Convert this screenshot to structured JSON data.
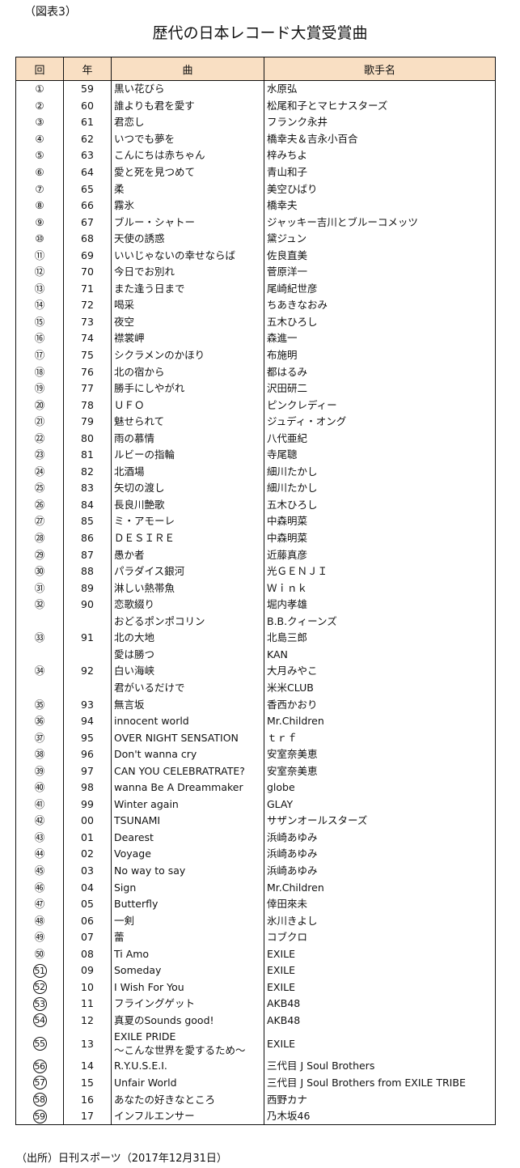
{
  "figure_label": "（図表3）",
  "title": "歴代の日本レコード大賞受賞曲",
  "headers": {
    "no": "回",
    "year": "年",
    "song": "曲",
    "artist": "歌手名"
  },
  "header_bg": "#f9dfc3",
  "rows": [
    {
      "no": 1,
      "year": "59",
      "lines": [
        [
          "黒い花びら",
          "水原弘"
        ]
      ]
    },
    {
      "no": 2,
      "year": "60",
      "lines": [
        [
          "誰よりも君を愛す",
          "松尾和子とマヒナスターズ"
        ]
      ]
    },
    {
      "no": 3,
      "year": "61",
      "lines": [
        [
          "君恋し",
          "フランク永井"
        ]
      ]
    },
    {
      "no": 4,
      "year": "62",
      "lines": [
        [
          "いつでも夢を",
          "橋幸夫＆吉永小百合"
        ]
      ]
    },
    {
      "no": 5,
      "year": "63",
      "lines": [
        [
          "こんにちは赤ちゃん",
          "梓みちよ"
        ]
      ]
    },
    {
      "no": 6,
      "year": "64",
      "lines": [
        [
          "愛と死を見つめて",
          "青山和子"
        ]
      ]
    },
    {
      "no": 7,
      "year": "65",
      "lines": [
        [
          "柔",
          "美空ひばり"
        ]
      ]
    },
    {
      "no": 8,
      "year": "66",
      "lines": [
        [
          "霧氷",
          "橋幸夫"
        ]
      ]
    },
    {
      "no": 9,
      "year": "67",
      "lines": [
        [
          "ブルー・シャトー",
          "ジャッキー吉川とブルーコメッツ"
        ]
      ]
    },
    {
      "no": 10,
      "year": "68",
      "lines": [
        [
          "天使の誘惑",
          "黛ジュン"
        ]
      ]
    },
    {
      "no": 11,
      "year": "69",
      "lines": [
        [
          "いいじゃないの幸せならば",
          "佐良直美"
        ]
      ]
    },
    {
      "no": 12,
      "year": "70",
      "lines": [
        [
          "今日でお別れ",
          "菅原洋一"
        ]
      ]
    },
    {
      "no": 13,
      "year": "71",
      "lines": [
        [
          "また逢う日まで",
          "尾崎紀世彦"
        ]
      ]
    },
    {
      "no": 14,
      "year": "72",
      "lines": [
        [
          "喝采",
          "ちあきなおみ"
        ]
      ]
    },
    {
      "no": 15,
      "year": "73",
      "lines": [
        [
          "夜空",
          "五木ひろし"
        ]
      ]
    },
    {
      "no": 16,
      "year": "74",
      "lines": [
        [
          "襟裳岬",
          "森進一"
        ]
      ]
    },
    {
      "no": 17,
      "year": "75",
      "lines": [
        [
          "シクラメンのかほり",
          "布施明"
        ]
      ]
    },
    {
      "no": 18,
      "year": "76",
      "lines": [
        [
          "北の宿から",
          "都はるみ"
        ]
      ]
    },
    {
      "no": 19,
      "year": "77",
      "lines": [
        [
          "勝手にしやがれ",
          "沢田研二"
        ]
      ]
    },
    {
      "no": 20,
      "year": "78",
      "lines": [
        [
          "ＵＦＯ",
          "ピンクレディー"
        ]
      ]
    },
    {
      "no": 21,
      "year": "79",
      "lines": [
        [
          "魅せられて",
          "ジュディ・オング"
        ]
      ]
    },
    {
      "no": 22,
      "year": "80",
      "lines": [
        [
          "雨の慕情",
          "八代亜紀"
        ]
      ]
    },
    {
      "no": 23,
      "year": "81",
      "lines": [
        [
          "ルビーの指輪",
          "寺尾聰"
        ]
      ]
    },
    {
      "no": 24,
      "year": "82",
      "lines": [
        [
          "北酒場",
          "細川たかし"
        ]
      ]
    },
    {
      "no": 25,
      "year": "83",
      "lines": [
        [
          "矢切の渡し",
          "細川たかし"
        ]
      ]
    },
    {
      "no": 26,
      "year": "84",
      "lines": [
        [
          "長良川艶歌",
          "五木ひろし"
        ]
      ]
    },
    {
      "no": 27,
      "year": "85",
      "lines": [
        [
          "ミ・アモーレ",
          "中森明菜"
        ]
      ]
    },
    {
      "no": 28,
      "year": "86",
      "lines": [
        [
          "ＤＥＳＩＲＥ",
          "中森明菜"
        ]
      ]
    },
    {
      "no": 29,
      "year": "87",
      "lines": [
        [
          "愚か者",
          "近藤真彦"
        ]
      ]
    },
    {
      "no": 30,
      "year": "88",
      "lines": [
        [
          "パラダイス銀河",
          "光ＧＥＮＪＩ"
        ]
      ]
    },
    {
      "no": 31,
      "year": "89",
      "lines": [
        [
          "淋しい熱帯魚",
          "Ｗｉｎｋ"
        ]
      ]
    },
    {
      "no": 32,
      "year": "90",
      "lines": [
        [
          "恋歌綴り",
          "堀内孝雄"
        ],
        [
          "おどるポンポコリン",
          "B.B.クィーンズ"
        ]
      ]
    },
    {
      "no": 33,
      "year": "91",
      "lines": [
        [
          "北の大地",
          "北島三郎"
        ],
        [
          "愛は勝つ",
          "KAN"
        ]
      ]
    },
    {
      "no": 34,
      "year": "92",
      "lines": [
        [
          "白い海峡",
          "大月みやこ"
        ],
        [
          "君がいるだけで",
          "米米CLUB"
        ]
      ]
    },
    {
      "no": 35,
      "year": "93",
      "lines": [
        [
          "無言坂",
          "香西かおり"
        ]
      ]
    },
    {
      "no": 36,
      "year": "94",
      "lines": [
        [
          "innocent world",
          "Mr.Children"
        ]
      ]
    },
    {
      "no": 37,
      "year": "95",
      "lines": [
        [
          "OVER NIGHT SENSATION",
          "ｔｒｆ"
        ]
      ]
    },
    {
      "no": 38,
      "year": "96",
      "lines": [
        [
          "Don't wanna cry",
          "安室奈美恵"
        ]
      ]
    },
    {
      "no": 39,
      "year": "97",
      "lines": [
        [
          "CAN YOU CELEBRATRATE?",
          "安室奈美恵"
        ]
      ]
    },
    {
      "no": 40,
      "year": "98",
      "lines": [
        [
          "wanna Be A Dreammaker",
          "globe"
        ]
      ]
    },
    {
      "no": 41,
      "year": "99",
      "lines": [
        [
          "Winter again",
          "GLAY"
        ]
      ]
    },
    {
      "no": 42,
      "year": "00",
      "lines": [
        [
          "TSUNAMI",
          "サザンオールスターズ"
        ]
      ]
    },
    {
      "no": 43,
      "year": "01",
      "lines": [
        [
          "Dearest",
          "浜崎あゆみ"
        ]
      ]
    },
    {
      "no": 44,
      "year": "02",
      "lines": [
        [
          "Voyage",
          "浜崎あゆみ"
        ]
      ]
    },
    {
      "no": 45,
      "year": "03",
      "lines": [
        [
          "No way to say",
          "浜崎あゆみ"
        ]
      ]
    },
    {
      "no": 46,
      "year": "04",
      "lines": [
        [
          "Sign",
          "Mr.Children"
        ]
      ]
    },
    {
      "no": 47,
      "year": "05",
      "lines": [
        [
          "Butterfly",
          "倖田來未"
        ]
      ]
    },
    {
      "no": 48,
      "year": "06",
      "lines": [
        [
          "一剣",
          "氷川きよし"
        ]
      ]
    },
    {
      "no": 49,
      "year": "07",
      "lines": [
        [
          "蕾",
          "コブクロ"
        ]
      ]
    },
    {
      "no": 50,
      "year": "08",
      "lines": [
        [
          "Ti Amo",
          "EXILE"
        ]
      ]
    },
    {
      "no": 51,
      "year": "09",
      "lines": [
        [
          "Someday",
          "EXILE"
        ]
      ]
    },
    {
      "no": 52,
      "year": "10",
      "lines": [
        [
          "I Wish For You",
          "EXILE"
        ]
      ]
    },
    {
      "no": 53,
      "year": "11",
      "lines": [
        [
          "フライングゲット",
          "AKB48"
        ]
      ]
    },
    {
      "no": 54,
      "year": "12",
      "lines": [
        [
          "真夏のSounds good!",
          "AKB48"
        ]
      ]
    },
    {
      "no": 55,
      "year": "13",
      "tall": true,
      "lines": [
        [
          "EXILE PRIDE\n～こんな世界を愛するため～",
          "EXILE"
        ]
      ]
    },
    {
      "no": 56,
      "year": "14",
      "lines": [
        [
          "R.Y.U.S.E.I.",
          "三代目 J Soul Brothers"
        ]
      ]
    },
    {
      "no": 57,
      "year": "15",
      "lines": [
        [
          "Unfair World",
          "三代目 J Soul Brothers from EXILE TRIBE"
        ]
      ]
    },
    {
      "no": 58,
      "year": "16",
      "lines": [
        [
          "あなたの好きなところ",
          "西野カナ"
        ]
      ]
    },
    {
      "no": 59,
      "year": "17",
      "lines": [
        [
          "インフルエンサー",
          "乃木坂46"
        ]
      ]
    }
  ],
  "source": "（出所）日刊スポーツ（2017年12月31日）"
}
